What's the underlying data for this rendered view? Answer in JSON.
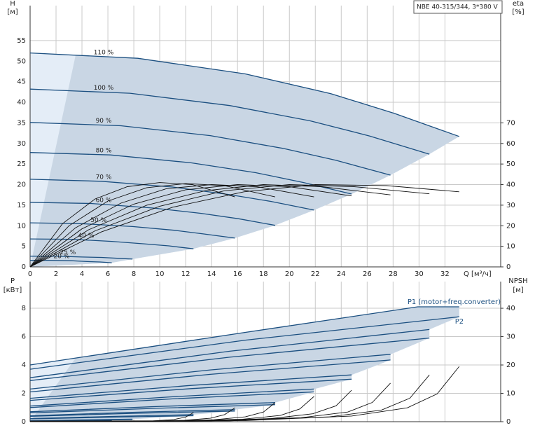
{
  "chart_data": [
    {
      "type": "line",
      "title": "NBE 40-315/344, 3*380 V",
      "x_label": "Q [м³/ч]",
      "y_label": "H",
      "y_unit": "[м]",
      "y2_label": "eta",
      "y2_unit": "[%]",
      "xlim": [
        0,
        36.3
      ],
      "xticks": [
        0,
        2,
        4,
        6,
        8,
        10,
        12,
        14,
        16,
        18,
        20,
        22,
        24,
        26,
        28,
        30,
        32
      ],
      "ylim": [
        0,
        63.5
      ],
      "yticks": [
        0,
        5,
        10,
        15,
        20,
        25,
        30,
        35,
        40,
        45,
        50,
        55
      ],
      "y2lim": [
        0,
        127
      ],
      "y2ticks": [
        0,
        10,
        20,
        30,
        40,
        50,
        60,
        70
      ],
      "grid": true,
      "series": [
        {
          "name": "110 %",
          "color": "#1b4f80",
          "x": [
            0,
            8.3,
            16.6,
            23.2,
            28.1,
            33.1
          ],
          "values": [
            52,
            50.7,
            46.9,
            42.1,
            37.3,
            31.7
          ]
        },
        {
          "name": "100 %",
          "color": "#1b4f80",
          "x": [
            0,
            7.7,
            15.4,
            21.6,
            26.2,
            30.8
          ],
          "values": [
            43.2,
            42.2,
            39.2,
            35.5,
            31.8,
            27.4
          ]
        },
        {
          "name": "90 %",
          "color": "#1b4f80",
          "x": [
            0,
            7,
            13.9,
            19.5,
            23.6,
            27.8
          ],
          "values": [
            35.1,
            34.3,
            31.9,
            28.8,
            25.9,
            22.3
          ]
        },
        {
          "name": "80 %",
          "color": "#1b4f80",
          "x": [
            0,
            6.2,
            12.4,
            17.4,
            21.1,
            24.8
          ],
          "values": [
            27.8,
            27.2,
            25.3,
            22.9,
            20.5,
            17.7
          ]
        },
        {
          "name": "70 %",
          "color": "#1b4f80",
          "x": [
            0,
            5.5,
            11,
            15.3,
            18.6,
            21.9
          ],
          "values": [
            21.3,
            20.8,
            19.4,
            17.6,
            15.9,
            13.8
          ]
        },
        {
          "name": "60 %",
          "color": "#1b4f80",
          "x": [
            0,
            4.7,
            9.5,
            13.2,
            16.1,
            18.9
          ],
          "values": [
            15.7,
            15.4,
            14.3,
            13,
            11.7,
            10.1
          ]
        },
        {
          "name": "50 %",
          "color": "#1b4f80",
          "x": [
            0,
            4,
            7.9,
            11.1,
            13.4,
            15.8
          ],
          "values": [
            10.7,
            10.5,
            9.8,
            8.9,
            8,
            7
          ]
        },
        {
          "name": "40 %",
          "color": "#1b4f80",
          "x": [
            0,
            3.2,
            6.3,
            8.8,
            10.7,
            12.6
          ],
          "values": [
            6.8,
            6.7,
            6.2,
            5.6,
            5.1,
            4.4
          ]
        },
        {
          "name": "25 %",
          "color": "#1b4f80",
          "x": [
            0,
            2,
            4,
            5.5,
            6.7,
            7.9
          ],
          "values": [
            2.6,
            2.6,
            2.4,
            2.3,
            2.1,
            1.9
          ]
        },
        {
          "name": "20 %",
          "color": "#1b4f80",
          "x": [
            0,
            1.6,
            3.2,
            4.4,
            5.4,
            6.3
          ],
          "values": [
            1.6,
            1.6,
            1.5,
            1.3,
            1.2,
            1
          ]
        },
        {
          "color": "#111111",
          "axis": "y2",
          "x": [
            0,
            5.5,
            11,
            16.5,
            22,
            27.5,
            33.1
          ],
          "values": [
            0,
            17,
            29,
            36.5,
            40,
            39.5,
            36.5
          ]
        },
        {
          "color": "#111111",
          "axis": "y2",
          "x": [
            0,
            5,
            10,
            15,
            20,
            25,
            30.8
          ],
          "values": [
            0,
            17.5,
            29.5,
            37,
            40,
            39,
            35.5
          ]
        },
        {
          "color": "#111111",
          "axis": "y2",
          "x": [
            0,
            4.5,
            9,
            13.5,
            18,
            22.5,
            27.8
          ],
          "values": [
            0,
            18,
            30,
            37,
            40,
            39,
            35
          ]
        },
        {
          "color": "#111111",
          "axis": "y2",
          "x": [
            0,
            4,
            8,
            12,
            16,
            20,
            24.8
          ],
          "values": [
            0,
            18.5,
            30.5,
            37.5,
            40,
            39,
            34.5
          ]
        },
        {
          "color": "#111111",
          "axis": "y2",
          "x": [
            0,
            3.5,
            7,
            10.5,
            14,
            17.5,
            21.9
          ],
          "values": [
            0,
            19,
            31,
            38,
            40,
            39,
            34
          ]
        },
        {
          "color": "#111111",
          "axis": "y2",
          "x": [
            0,
            3,
            6,
            9,
            12,
            15,
            18.9
          ],
          "values": [
            0,
            20,
            32,
            38.5,
            40.5,
            39.5,
            34
          ]
        },
        {
          "color": "#111111",
          "axis": "y2",
          "x": [
            0,
            2.5,
            5,
            7.5,
            10,
            12.5,
            15.8
          ],
          "values": [
            0,
            21,
            33,
            39,
            41,
            40,
            34
          ]
        }
      ]
    },
    {
      "type": "line",
      "y_label": "P",
      "y_unit": "[кВт]",
      "y2_label": "NPSH",
      "y2_unit": "[м]",
      "xlim": [
        0,
        36.3
      ],
      "ylim": [
        0,
        9.88
      ],
      "yticks": [
        0,
        2,
        4,
        6,
        8
      ],
      "y2lim": [
        0,
        49.4
      ],
      "y2ticks": [
        0,
        10,
        20,
        30,
        40
      ],
      "grid": true,
      "series": [
        {
          "name": "P1 (motor+freq.converter)",
          "color": "#1b4f80",
          "x": [
            0,
            16.6,
            29.9,
            33.1
          ],
          "values": [
            4,
            6.3,
            8.1,
            8.1
          ]
        },
        {
          "name": "P2",
          "color": "#1b4f80",
          "x": [
            0,
            16.6,
            33.1
          ],
          "values": [
            3.7,
            5.75,
            7.4
          ]
        },
        {
          "color": "#1b4f80",
          "x": [
            0,
            15.4,
            30.8
          ],
          "values": [
            3.1,
            4.97,
            6.5
          ]
        },
        {
          "color": "#1b4f80",
          "x": [
            0,
            15.4,
            30.8
          ],
          "values": [
            2.9,
            4.55,
            5.9
          ]
        },
        {
          "color": "#1b4f80",
          "x": [
            0,
            13.9,
            27.8
          ],
          "values": [
            2.3,
            3.65,
            4.75
          ]
        },
        {
          "color": "#1b4f80",
          "x": [
            0,
            13.9,
            27.8
          ],
          "values": [
            2.1,
            3.34,
            4.35
          ]
        },
        {
          "color": "#1b4f80",
          "x": [
            0,
            12.4,
            24.8
          ],
          "values": [
            1.65,
            2.56,
            3.3
          ]
        },
        {
          "color": "#1b4f80",
          "x": [
            0,
            12.4,
            24.8
          ],
          "values": [
            1.5,
            2.33,
            3
          ]
        },
        {
          "color": "#1b4f80",
          "x": [
            0,
            11,
            21.9
          ],
          "values": [
            1.1,
            1.76,
            2.3
          ]
        },
        {
          "color": "#1b4f80",
          "x": [
            0,
            11,
            21.9
          ],
          "values": [
            1,
            1.61,
            2.1
          ]
        },
        {
          "color": "#1b4f80",
          "x": [
            0,
            9.5,
            18.9
          ],
          "values": [
            0.7,
            1.06,
            1.35
          ]
        },
        {
          "color": "#1b4f80",
          "x": [
            0,
            9.5,
            18.9
          ],
          "values": [
            0.62,
            0.94,
            1.2
          ]
        },
        {
          "color": "#1b4f80",
          "x": [
            0,
            7.9,
            15.8
          ],
          "values": [
            0.42,
            0.66,
            0.85
          ]
        },
        {
          "color": "#1b4f80",
          "x": [
            0,
            7.9,
            15.8
          ],
          "values": [
            0.38,
            0.59,
            0.75
          ]
        },
        {
          "color": "#1b4f80",
          "x": [
            0,
            6.3,
            12.6
          ],
          "values": [
            0.22,
            0.37,
            0.5
          ]
        },
        {
          "color": "#1b4f80",
          "x": [
            0,
            6.3,
            12.6
          ],
          "values": [
            0.2,
            0.32,
            0.42
          ]
        },
        {
          "color": "#1b4f80",
          "x": [
            0,
            4,
            7.9
          ],
          "values": [
            0.07,
            0.13,
            0.18
          ]
        },
        {
          "color": "#1b4f80",
          "x": [
            0,
            4,
            7.9
          ],
          "values": [
            0.06,
            0.11,
            0.15
          ]
        },
        {
          "color": "#1b4f80",
          "x": [
            0,
            3.2,
            6.3
          ],
          "values": [
            0.04,
            0.07,
            0.1
          ]
        },
        {
          "color": "#1b4f80",
          "x": [
            0,
            3.2,
            6.3
          ],
          "values": [
            0.03,
            0.06,
            0.08
          ]
        },
        {
          "color": "#111111",
          "axis": "y2",
          "x": [
            0,
            16.6,
            24.8,
            29.1,
            31.4,
            33.1
          ],
          "values": [
            0.2,
            0.4,
            2,
            4.9,
            9.8,
            19.5
          ]
        },
        {
          "color": "#111111",
          "axis": "y2",
          "x": [
            0,
            15.4,
            23.1,
            27.1,
            29.3,
            30.8
          ],
          "values": [
            0.2,
            0.3,
            1.7,
            4.1,
            8.3,
            16.5
          ]
        },
        {
          "color": "#111111",
          "axis": "y2",
          "x": [
            0,
            13.9,
            20.9,
            24.5,
            26.4,
            27.8
          ],
          "values": [
            0.1,
            0.3,
            1.4,
            3.4,
            6.8,
            13.6
          ]
        },
        {
          "color": "#111111",
          "axis": "y2",
          "x": [
            0,
            12.4,
            18.6,
            21.8,
            23.6,
            24.8
          ],
          "values": [
            0.1,
            0.2,
            1.1,
            2.8,
            5.6,
            11.1
          ]
        },
        {
          "color": "#111111",
          "axis": "y2",
          "x": [
            0,
            11,
            16.4,
            19.3,
            20.8,
            21.9
          ],
          "values": [
            0.1,
            0.2,
            0.9,
            2.2,
            4.5,
            8.9
          ]
        },
        {
          "color": "#111111",
          "axis": "y2",
          "x": [
            0,
            9.5,
            14.2,
            16.6,
            18,
            18.9
          ],
          "values": [
            0.1,
            0.1,
            0.7,
            1.7,
            3.4,
            6.7
          ]
        },
        {
          "color": "#111111",
          "axis": "y2",
          "x": [
            0,
            7.9,
            11.9,
            13.9,
            15,
            15.8
          ],
          "values": [
            0.1,
            0.1,
            0.5,
            1.2,
            2.5,
            4.9
          ]
        },
        {
          "color": "#111111",
          "axis": "y2",
          "x": [
            0,
            6.3,
            9.5,
            11.1,
            12,
            12.6
          ],
          "values": [
            0.1,
            0.1,
            0.3,
            0.8,
            1.6,
            3.2
          ]
        }
      ]
    }
  ]
}
